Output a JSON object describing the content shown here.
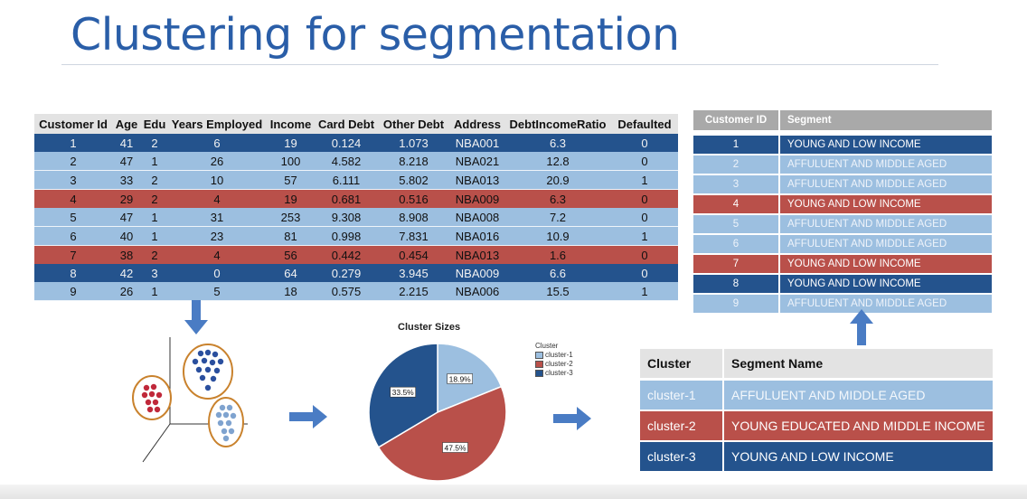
{
  "slide": {
    "title": "Clustering for segmentation"
  },
  "main_table": {
    "headers": [
      "Customer Id",
      "Age",
      "Edu",
      "Years Employed",
      "Income",
      "Card Debt",
      "Other Debt",
      "Address",
      "DebtIncomeRatio",
      "Defaulted"
    ],
    "rows": [
      {
        "tone": "dark",
        "cells": [
          "1",
          "41",
          "2",
          "6",
          "19",
          "0.124",
          "1.073",
          "NBA001",
          "6.3",
          "0"
        ]
      },
      {
        "tone": "light",
        "cells": [
          "2",
          "47",
          "1",
          "26",
          "100",
          "4.582",
          "8.218",
          "NBA021",
          "12.8",
          "0"
        ]
      },
      {
        "tone": "light",
        "cells": [
          "3",
          "33",
          "2",
          "10",
          "57",
          "6.111",
          "5.802",
          "NBA013",
          "20.9",
          "1"
        ]
      },
      {
        "tone": "red",
        "cells": [
          "4",
          "29",
          "2",
          "4",
          "19",
          "0.681",
          "0.516",
          "NBA009",
          "6.3",
          "0"
        ]
      },
      {
        "tone": "light",
        "cells": [
          "5",
          "47",
          "1",
          "31",
          "253",
          "9.308",
          "8.908",
          "NBA008",
          "7.2",
          "0"
        ]
      },
      {
        "tone": "light",
        "cells": [
          "6",
          "40",
          "1",
          "23",
          "81",
          "0.998",
          "7.831",
          "NBA016",
          "10.9",
          "1"
        ]
      },
      {
        "tone": "red",
        "cells": [
          "7",
          "38",
          "2",
          "4",
          "56",
          "0.442",
          "0.454",
          "NBA013",
          "1.6",
          "0"
        ]
      },
      {
        "tone": "dark",
        "cells": [
          "8",
          "42",
          "3",
          "0",
          "64",
          "0.279",
          "3.945",
          "NBA009",
          "6.6",
          "0"
        ]
      },
      {
        "tone": "light",
        "cells": [
          "9",
          "26",
          "1",
          "5",
          "18",
          "0.575",
          "2.215",
          "NBA006",
          "15.5",
          "1"
        ]
      }
    ]
  },
  "segment_table": {
    "headers": [
      "Customer ID",
      "Segment"
    ],
    "rows": [
      {
        "tone": "dark",
        "cells": [
          "1",
          "YOUNG AND LOW INCOME"
        ]
      },
      {
        "tone": "light",
        "cells": [
          "2",
          "AFFULUENT AND MIDDLE AGED"
        ]
      },
      {
        "tone": "light",
        "cells": [
          "3",
          "AFFULUENT AND MIDDLE AGED"
        ]
      },
      {
        "tone": "red",
        "cells": [
          "4",
          "YOUNG AND LOW INCOME"
        ]
      },
      {
        "tone": "light",
        "cells": [
          "5",
          "AFFULUENT AND MIDDLE AGED"
        ]
      },
      {
        "tone": "light",
        "cells": [
          "6",
          "AFFULUENT AND MIDDLE AGED"
        ]
      },
      {
        "tone": "red",
        "cells": [
          "7",
          "YOUNG AND LOW INCOME"
        ]
      },
      {
        "tone": "dark",
        "cells": [
          "8",
          "YOUNG AND LOW INCOME"
        ]
      },
      {
        "tone": "light",
        "cells": [
          "9",
          "AFFULUENT AND MIDDLE AGED"
        ]
      }
    ]
  },
  "cluster_table": {
    "headers": [
      "Cluster",
      "Segment Name"
    ],
    "rows": [
      {
        "tone": "light",
        "cells": [
          "cluster-1",
          "AFFULUENT AND MIDDLE AGED"
        ]
      },
      {
        "tone": "red",
        "cells": [
          "cluster-2",
          "YOUNG EDUCATED AND MIDDLE INCOME"
        ]
      },
      {
        "tone": "dark",
        "cells": [
          "cluster-3",
          "YOUNG AND LOW INCOME"
        ]
      }
    ]
  },
  "colors": {
    "dark": "#24538d",
    "light": "#9cbfe0",
    "red": "#b9504a",
    "arrow": "#4a7cc4",
    "title": "#2a5ea8"
  },
  "chart_data": {
    "type": "pie",
    "title": "Cluster Sizes",
    "legend_title": "Cluster",
    "legend_position": "right",
    "slices": [
      {
        "name": "cluster-1",
        "value": 18.9,
        "label": "18.9%",
        "color": "#9cbfe0"
      },
      {
        "name": "cluster-2",
        "value": 47.5,
        "label": "47.5%",
        "color": "#b9504a"
      },
      {
        "name": "cluster-3",
        "value": 33.5,
        "label": "33.5%",
        "color": "#24538d"
      }
    ]
  },
  "icons": [
    "down-arrow-icon",
    "right-arrow-icon",
    "up-arrow-icon",
    "scatter-cluster-icon"
  ]
}
